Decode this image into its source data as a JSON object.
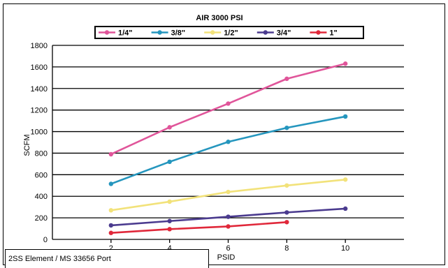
{
  "chart_data": {
    "type": "line",
    "title": "AIR 3000 PSI",
    "xlabel": "PSID",
    "ylabel": "SCFM",
    "x": [
      2,
      4,
      6,
      8,
      10
    ],
    "xlim": [
      0,
      12
    ],
    "ylim": [
      0,
      1800
    ],
    "x_ticks": [
      "2",
      "4",
      "6",
      "8",
      "10"
    ],
    "y_ticks": [
      "0",
      "200",
      "400",
      "600",
      "800",
      "1000",
      "1200",
      "1400",
      "1600",
      "1800"
    ],
    "grid": "horizontal",
    "legend_position": "top",
    "series": [
      {
        "name": "1/4\"",
        "color": "#e0559a",
        "values": [
          790,
          1040,
          1260,
          1490,
          1630
        ]
      },
      {
        "name": "3/8\"",
        "color": "#2596be",
        "values": [
          515,
          720,
          905,
          1035,
          1140
        ]
      },
      {
        "name": "1/2\"",
        "color": "#f2e27a",
        "values": [
          270,
          350,
          440,
          500,
          555
        ]
      },
      {
        "name": "3/4\"",
        "color": "#4b3b8f",
        "values": [
          130,
          170,
          210,
          250,
          285
        ]
      },
      {
        "name": "1\"",
        "color": "#e0283a",
        "values": [
          60,
          95,
          120,
          160,
          null
        ]
      }
    ]
  },
  "footer": {
    "label": "2SS Element / MS 33656 Port"
  }
}
